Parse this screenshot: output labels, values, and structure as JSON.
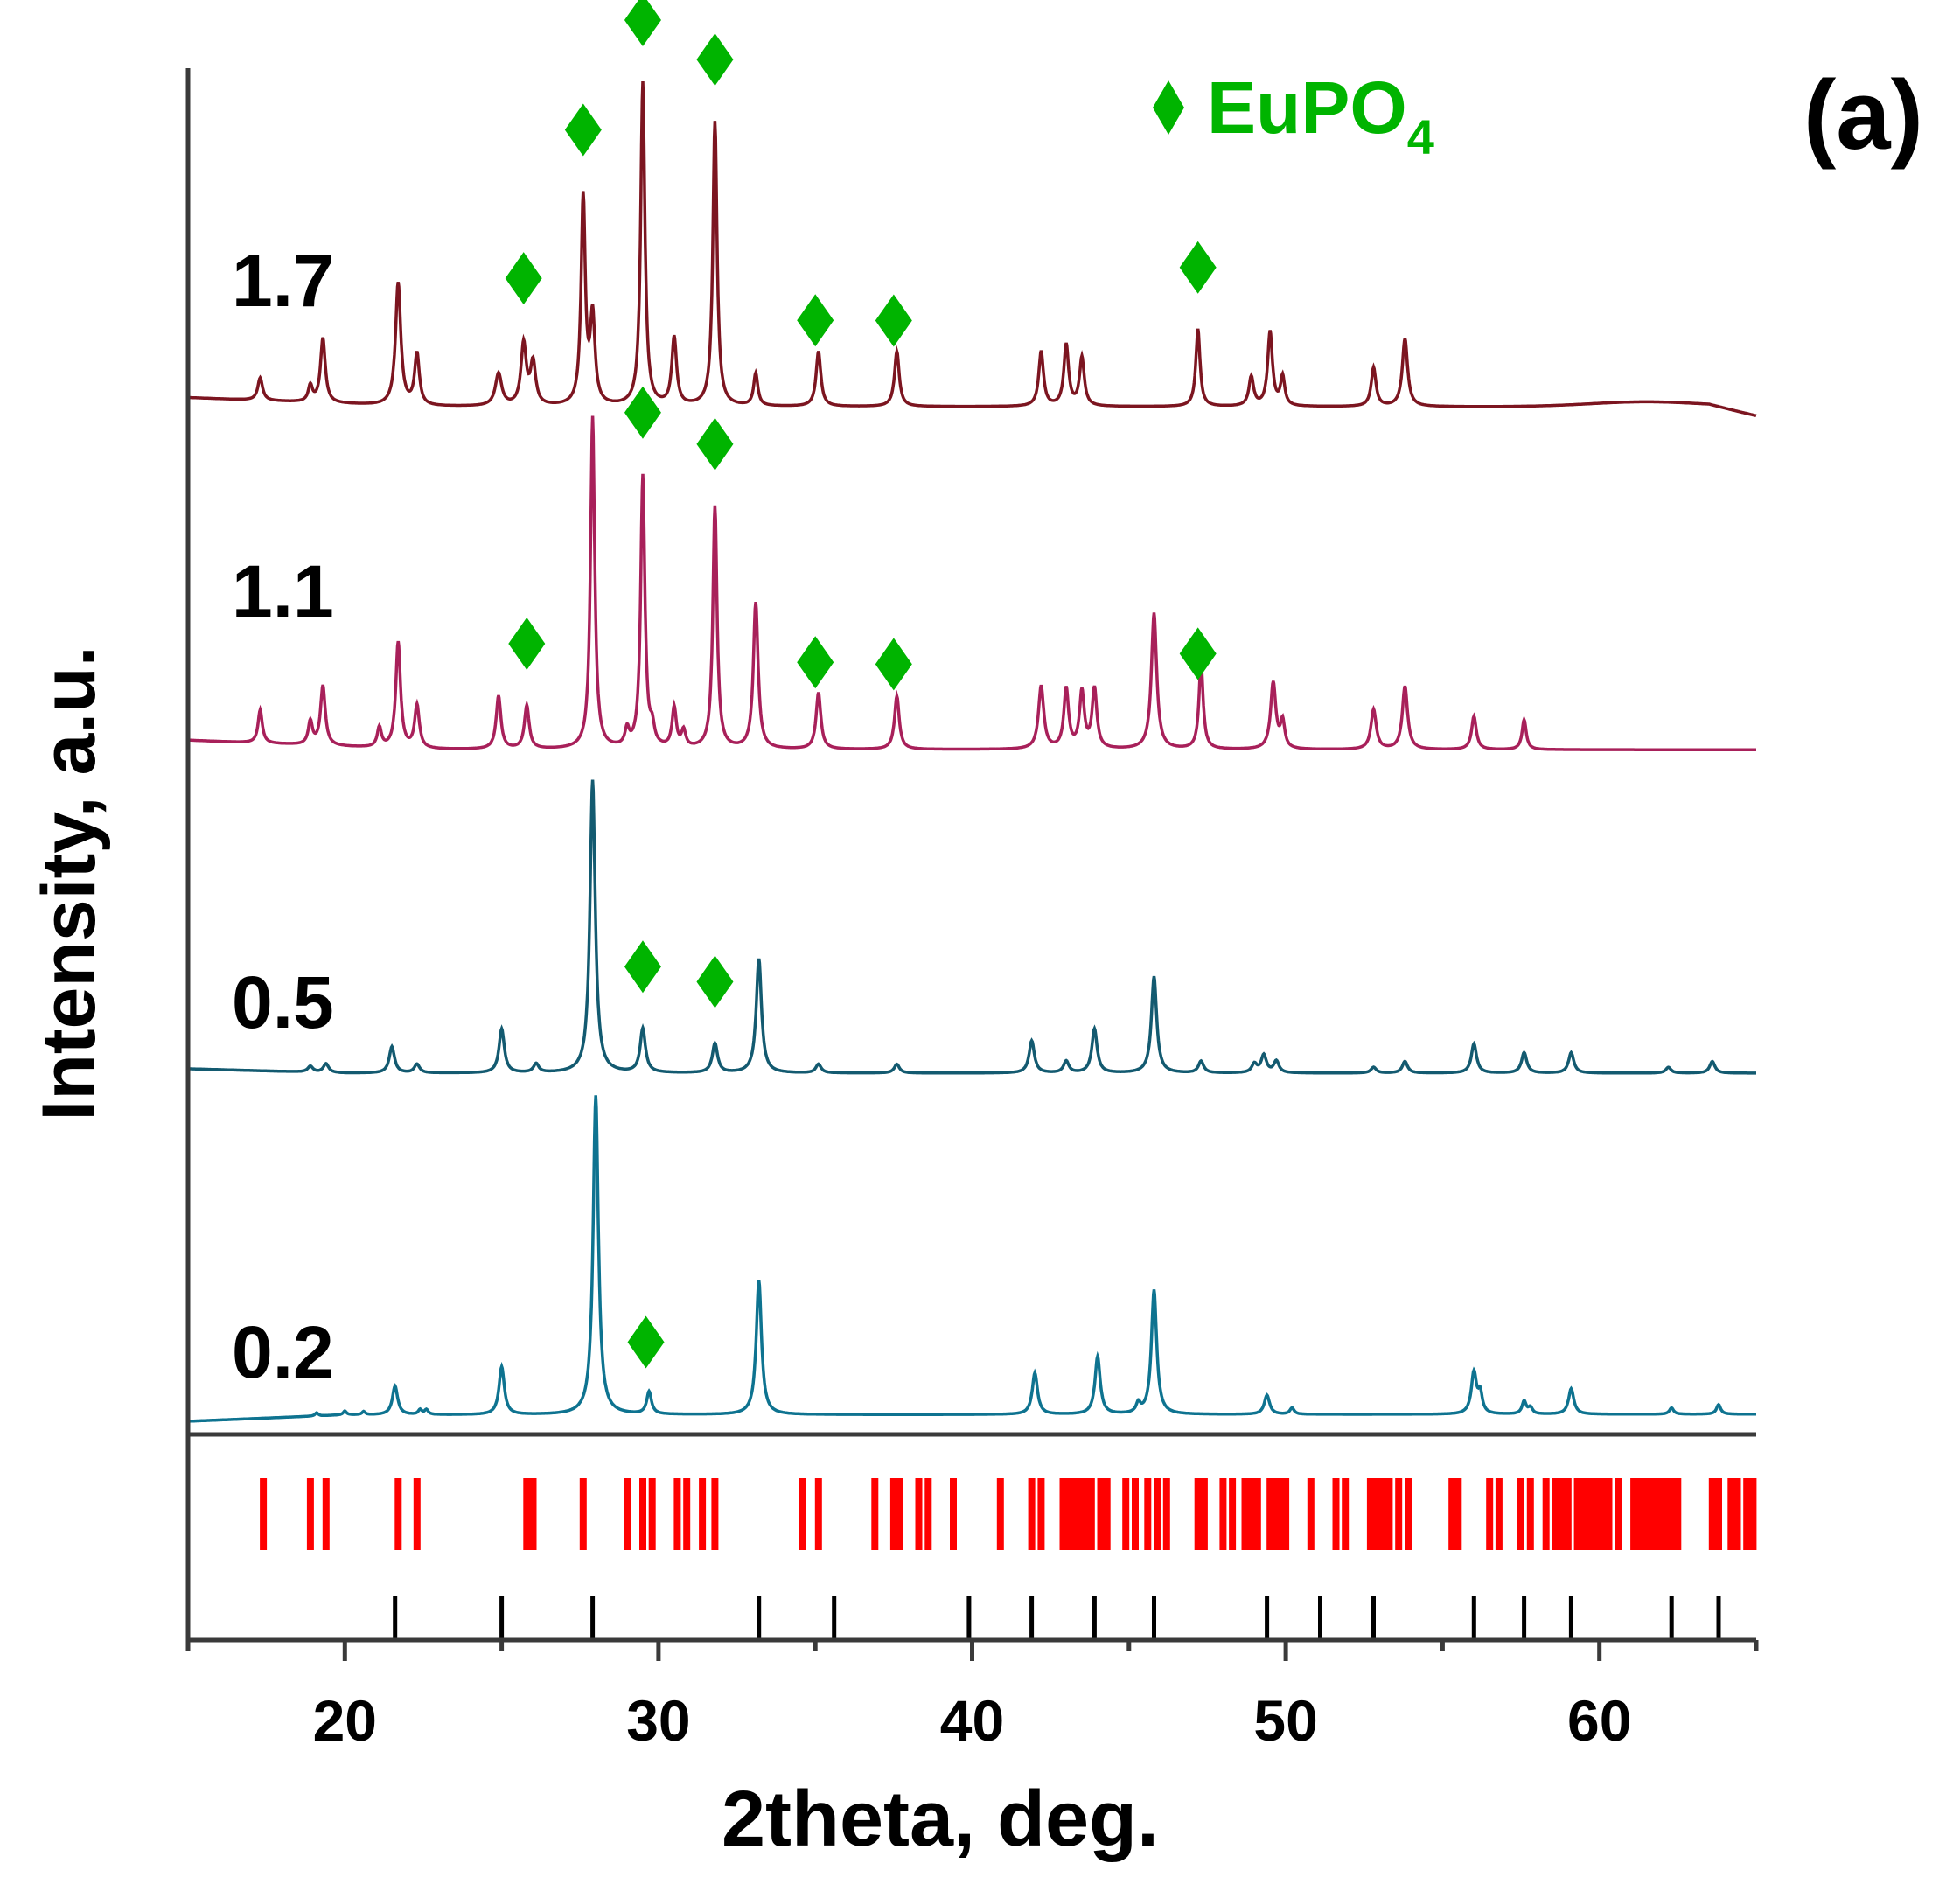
{
  "chart_data": {
    "type": "line",
    "panel_label": "(a)",
    "xlabel": "2theta, deg.",
    "ylabel": "Intensity, a.u.",
    "xlim": [
      15,
      65
    ],
    "x_ticks": [
      20,
      30,
      40,
      50,
      60
    ],
    "x_tick_labels": [
      "20",
      "30",
      "40",
      "50",
      "60"
    ],
    "y_axis_ticks": false,
    "legend": {
      "marker": "diamond",
      "label": "EuPO",
      "subscript": "4",
      "color": "#00b400",
      "position": "top-right"
    },
    "series": [
      {
        "name": "0.2",
        "color": "#0e7390",
        "baseline": 0.02,
        "scale": 1.0,
        "peaks": [
          [
            19.1,
            0.01,
            0.06
          ],
          [
            20.0,
            0.012,
            0.06
          ],
          [
            20.6,
            0.01,
            0.06
          ],
          [
            21.6,
            0.09,
            0.1
          ],
          [
            22.4,
            0.015,
            0.07
          ],
          [
            22.6,
            0.015,
            0.07
          ],
          [
            25.0,
            0.15,
            0.1
          ],
          [
            28.0,
            1.0,
            0.1
          ],
          [
            29.7,
            0.07,
            0.09
          ],
          [
            33.2,
            0.42,
            0.1
          ],
          [
            42.0,
            0.13,
            0.1
          ],
          [
            44.0,
            0.18,
            0.1
          ],
          [
            45.3,
            0.03,
            0.08
          ],
          [
            45.8,
            0.39,
            0.1
          ],
          [
            49.4,
            0.06,
            0.1
          ],
          [
            50.2,
            0.02,
            0.08
          ],
          [
            56.0,
            0.13,
            0.1
          ],
          [
            56.2,
            0.06,
            0.08
          ],
          [
            57.6,
            0.04,
            0.08
          ],
          [
            57.8,
            0.02,
            0.08
          ],
          [
            59.1,
            0.08,
            0.1
          ],
          [
            62.3,
            0.02,
            0.08
          ],
          [
            63.8,
            0.03,
            0.08
          ]
        ]
      },
      {
        "name": "0.5",
        "color": "#135a70",
        "baseline": 0.0,
        "scale": 1.0,
        "peaks": [
          [
            18.9,
            0.02,
            0.1
          ],
          [
            19.4,
            0.03,
            0.1
          ],
          [
            21.5,
            0.09,
            0.1
          ],
          [
            22.3,
            0.03,
            0.1
          ],
          [
            25.0,
            0.15,
            0.1
          ],
          [
            26.1,
            0.03,
            0.1
          ],
          [
            27.9,
            1.0,
            0.1
          ],
          [
            29.5,
            0.15,
            0.1
          ],
          [
            31.8,
            0.1,
            0.1
          ],
          [
            33.2,
            0.39,
            0.1
          ],
          [
            35.1,
            0.03,
            0.1
          ],
          [
            37.6,
            0.03,
            0.1
          ],
          [
            41.9,
            0.11,
            0.1
          ],
          [
            43.0,
            0.04,
            0.1
          ],
          [
            43.9,
            0.15,
            0.1
          ],
          [
            45.8,
            0.33,
            0.1
          ],
          [
            47.3,
            0.04,
            0.1
          ],
          [
            49.0,
            0.03,
            0.1
          ],
          [
            49.3,
            0.06,
            0.1
          ],
          [
            49.7,
            0.04,
            0.1
          ],
          [
            52.8,
            0.02,
            0.1
          ],
          [
            53.8,
            0.04,
            0.1
          ],
          [
            56.0,
            0.1,
            0.1
          ],
          [
            57.6,
            0.07,
            0.1
          ],
          [
            59.1,
            0.07,
            0.1
          ],
          [
            62.2,
            0.02,
            0.1
          ],
          [
            63.6,
            0.04,
            0.1
          ]
        ]
      },
      {
        "name": "1.1",
        "color": "#a8205a",
        "baseline": 0.0,
        "scale": 1.0,
        "peaks": [
          [
            17.3,
            0.1,
            0.08
          ],
          [
            18.9,
            0.07,
            0.08
          ],
          [
            19.3,
            0.18,
            0.09
          ],
          [
            21.1,
            0.06,
            0.08
          ],
          [
            21.7,
            0.32,
            0.09
          ],
          [
            22.3,
            0.13,
            0.09
          ],
          [
            24.9,
            0.16,
            0.09
          ],
          [
            25.8,
            0.13,
            0.09
          ],
          [
            27.9,
            1.0,
            0.08
          ],
          [
            29.0,
            0.05,
            0.08
          ],
          [
            29.5,
            0.82,
            0.08
          ],
          [
            29.8,
            0.05,
            0.08
          ],
          [
            30.5,
            0.12,
            0.08
          ],
          [
            30.8,
            0.05,
            0.08
          ],
          [
            31.8,
            0.73,
            0.08
          ],
          [
            33.1,
            0.44,
            0.09
          ],
          [
            35.1,
            0.17,
            0.09
          ],
          [
            37.6,
            0.16,
            0.09
          ],
          [
            42.2,
            0.19,
            0.1
          ],
          [
            43.0,
            0.18,
            0.09
          ],
          [
            43.5,
            0.17,
            0.09
          ],
          [
            43.9,
            0.18,
            0.09
          ],
          [
            45.8,
            0.41,
            0.1
          ],
          [
            47.3,
            0.26,
            0.08
          ],
          [
            49.6,
            0.2,
            0.1
          ],
          [
            49.9,
            0.08,
            0.08
          ],
          [
            52.8,
            0.12,
            0.1
          ],
          [
            53.8,
            0.19,
            0.1
          ],
          [
            56.0,
            0.1,
            0.09
          ],
          [
            57.6,
            0.09,
            0.08
          ]
        ]
      },
      {
        "name": "1.7",
        "color": "#7c1520",
        "baseline": 0.0,
        "scale": 1.0,
        "peaks": [
          [
            17.3,
            0.07,
            0.09
          ],
          [
            18.9,
            0.05,
            0.08
          ],
          [
            19.3,
            0.2,
            0.09
          ],
          [
            21.7,
            0.38,
            0.1
          ],
          [
            22.3,
            0.16,
            0.09
          ],
          [
            24.9,
            0.1,
            0.12
          ],
          [
            25.7,
            0.19,
            0.1
          ],
          [
            26.0,
            0.13,
            0.1
          ],
          [
            27.6,
            0.64,
            0.08
          ],
          [
            27.9,
            0.27,
            0.09
          ],
          [
            29.5,
            1.0,
            0.08
          ],
          [
            30.5,
            0.21,
            0.09
          ],
          [
            31.8,
            0.88,
            0.08
          ],
          [
            33.1,
            0.1,
            0.08
          ],
          [
            35.1,
            0.17,
            0.09
          ],
          [
            37.6,
            0.17,
            0.09
          ],
          [
            42.2,
            0.17,
            0.09
          ],
          [
            43.0,
            0.19,
            0.09
          ],
          [
            43.5,
            0.15,
            0.09
          ],
          [
            47.2,
            0.24,
            0.08
          ],
          [
            48.9,
            0.09,
            0.09
          ],
          [
            49.5,
            0.23,
            0.09
          ],
          [
            49.9,
            0.09,
            0.08
          ],
          [
            52.8,
            0.12,
            0.09
          ],
          [
            53.8,
            0.21,
            0.1
          ]
        ]
      }
    ],
    "label_x": [
      17.5,
      17.5,
      17.5,
      17.5
    ],
    "eupo4_markers": {
      "0.2": [
        29.6
      ],
      "0.5": [
        29.5,
        31.8
      ],
      "1.1": [
        25.8,
        29.5,
        31.8,
        35.0,
        37.5,
        47.2
      ],
      "1.7": [
        25.7,
        27.6,
        29.5,
        31.8,
        35.0,
        37.5,
        47.2
      ]
    },
    "reference_red": {
      "color": "#ff0000",
      "positions": [
        17.4,
        18.9,
        19.4,
        21.7,
        22.3,
        25.8,
        26.0,
        27.6,
        29.0,
        29.5,
        29.8,
        30.6,
        30.9,
        31.4,
        31.8,
        34.6,
        35.1,
        36.9,
        37.5,
        37.7,
        38.3,
        38.6,
        39.4,
        40.9,
        41.9,
        42.2,
        42.9,
        43.0,
        43.2,
        43.4,
        43.6,
        43.8,
        44.1,
        44.3,
        44.9,
        45.2,
        45.6,
        45.9,
        46.2,
        47.2,
        47.4,
        48.0,
        48.3,
        48.7,
        48.9,
        49.1,
        49.5,
        49.7,
        49.9,
        50.0,
        50.8,
        51.6,
        51.9,
        52.7,
        52.9,
        53.1,
        53.3,
        53.6,
        53.9,
        55.3,
        55.5,
        56.5,
        56.8,
        57.5,
        57.8,
        58.3,
        58.6,
        58.8,
        59.0,
        59.3,
        59.5,
        59.7,
        59.9,
        60.1,
        60.3,
        60.6,
        61.1,
        61.3,
        61.5,
        61.7,
        61.9,
        62.1,
        62.3,
        62.5,
        63.6,
        63.8,
        64.2,
        64.4,
        64.7,
        64.9
      ]
    },
    "reference_black": {
      "color": "#000000",
      "positions": [
        21.6,
        25.0,
        27.9,
        33.2,
        35.6,
        39.9,
        41.9,
        43.9,
        45.8,
        49.4,
        51.1,
        52.8,
        56.0,
        57.6,
        59.1,
        62.3,
        63.8
      ]
    }
  }
}
